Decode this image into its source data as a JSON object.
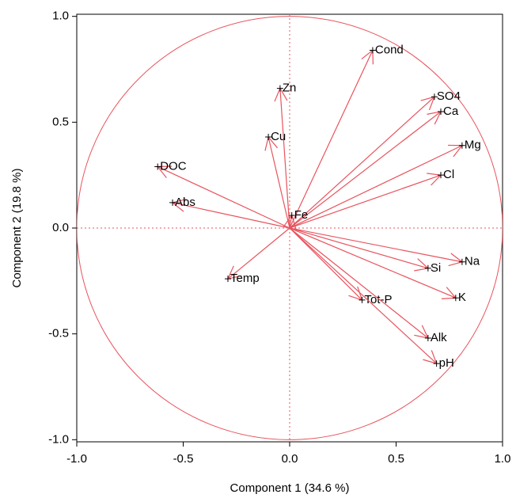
{
  "chart_data": {
    "type": "loading",
    "xlabel": "Component 1  (34.6 %)",
    "ylabel": "Component 2  (19.8 %)",
    "categories": [
      "Cond",
      "Zn",
      "SO4",
      "Ca",
      "Cu",
      "Mg",
      "DOC",
      "Cl",
      "Abs",
      "Fe",
      "Na",
      "Si",
      "Temp",
      "Tot-P",
      "K",
      "Alk",
      "pH"
    ],
    "x": [
      0.39,
      -0.045,
      0.68,
      0.71,
      -0.1,
      0.81,
      -0.62,
      0.71,
      -0.55,
      0.01,
      0.81,
      0.65,
      -0.29,
      0.34,
      0.78,
      0.65,
      0.69
    ],
    "values": [
      0.84,
      0.66,
      0.62,
      0.55,
      0.43,
      0.39,
      0.29,
      0.25,
      0.12,
      0.06,
      -0.16,
      -0.19,
      -0.24,
      -0.34,
      -0.33,
      -0.52,
      -0.64
    ],
    "color": "#e8545e",
    "circle_radius": 1,
    "xlim": [
      -1,
      1
    ],
    "ylim": [
      -1.01,
      1.01
    ],
    "xticks": [
      {
        "value": -1,
        "label": "-1.0"
      },
      -0.5,
      {
        "value": 0,
        "label": "0.0"
      },
      0.5,
      {
        "value": 1,
        "label": "1.0"
      }
    ],
    "yticks": [
      {
        "value": -1,
        "label": "-1.0"
      },
      -0.5,
      {
        "value": 0,
        "label": "0.0"
      },
      0.5,
      {
        "value": 1,
        "label": "1.0"
      }
    ],
    "zero_lines": true
  }
}
